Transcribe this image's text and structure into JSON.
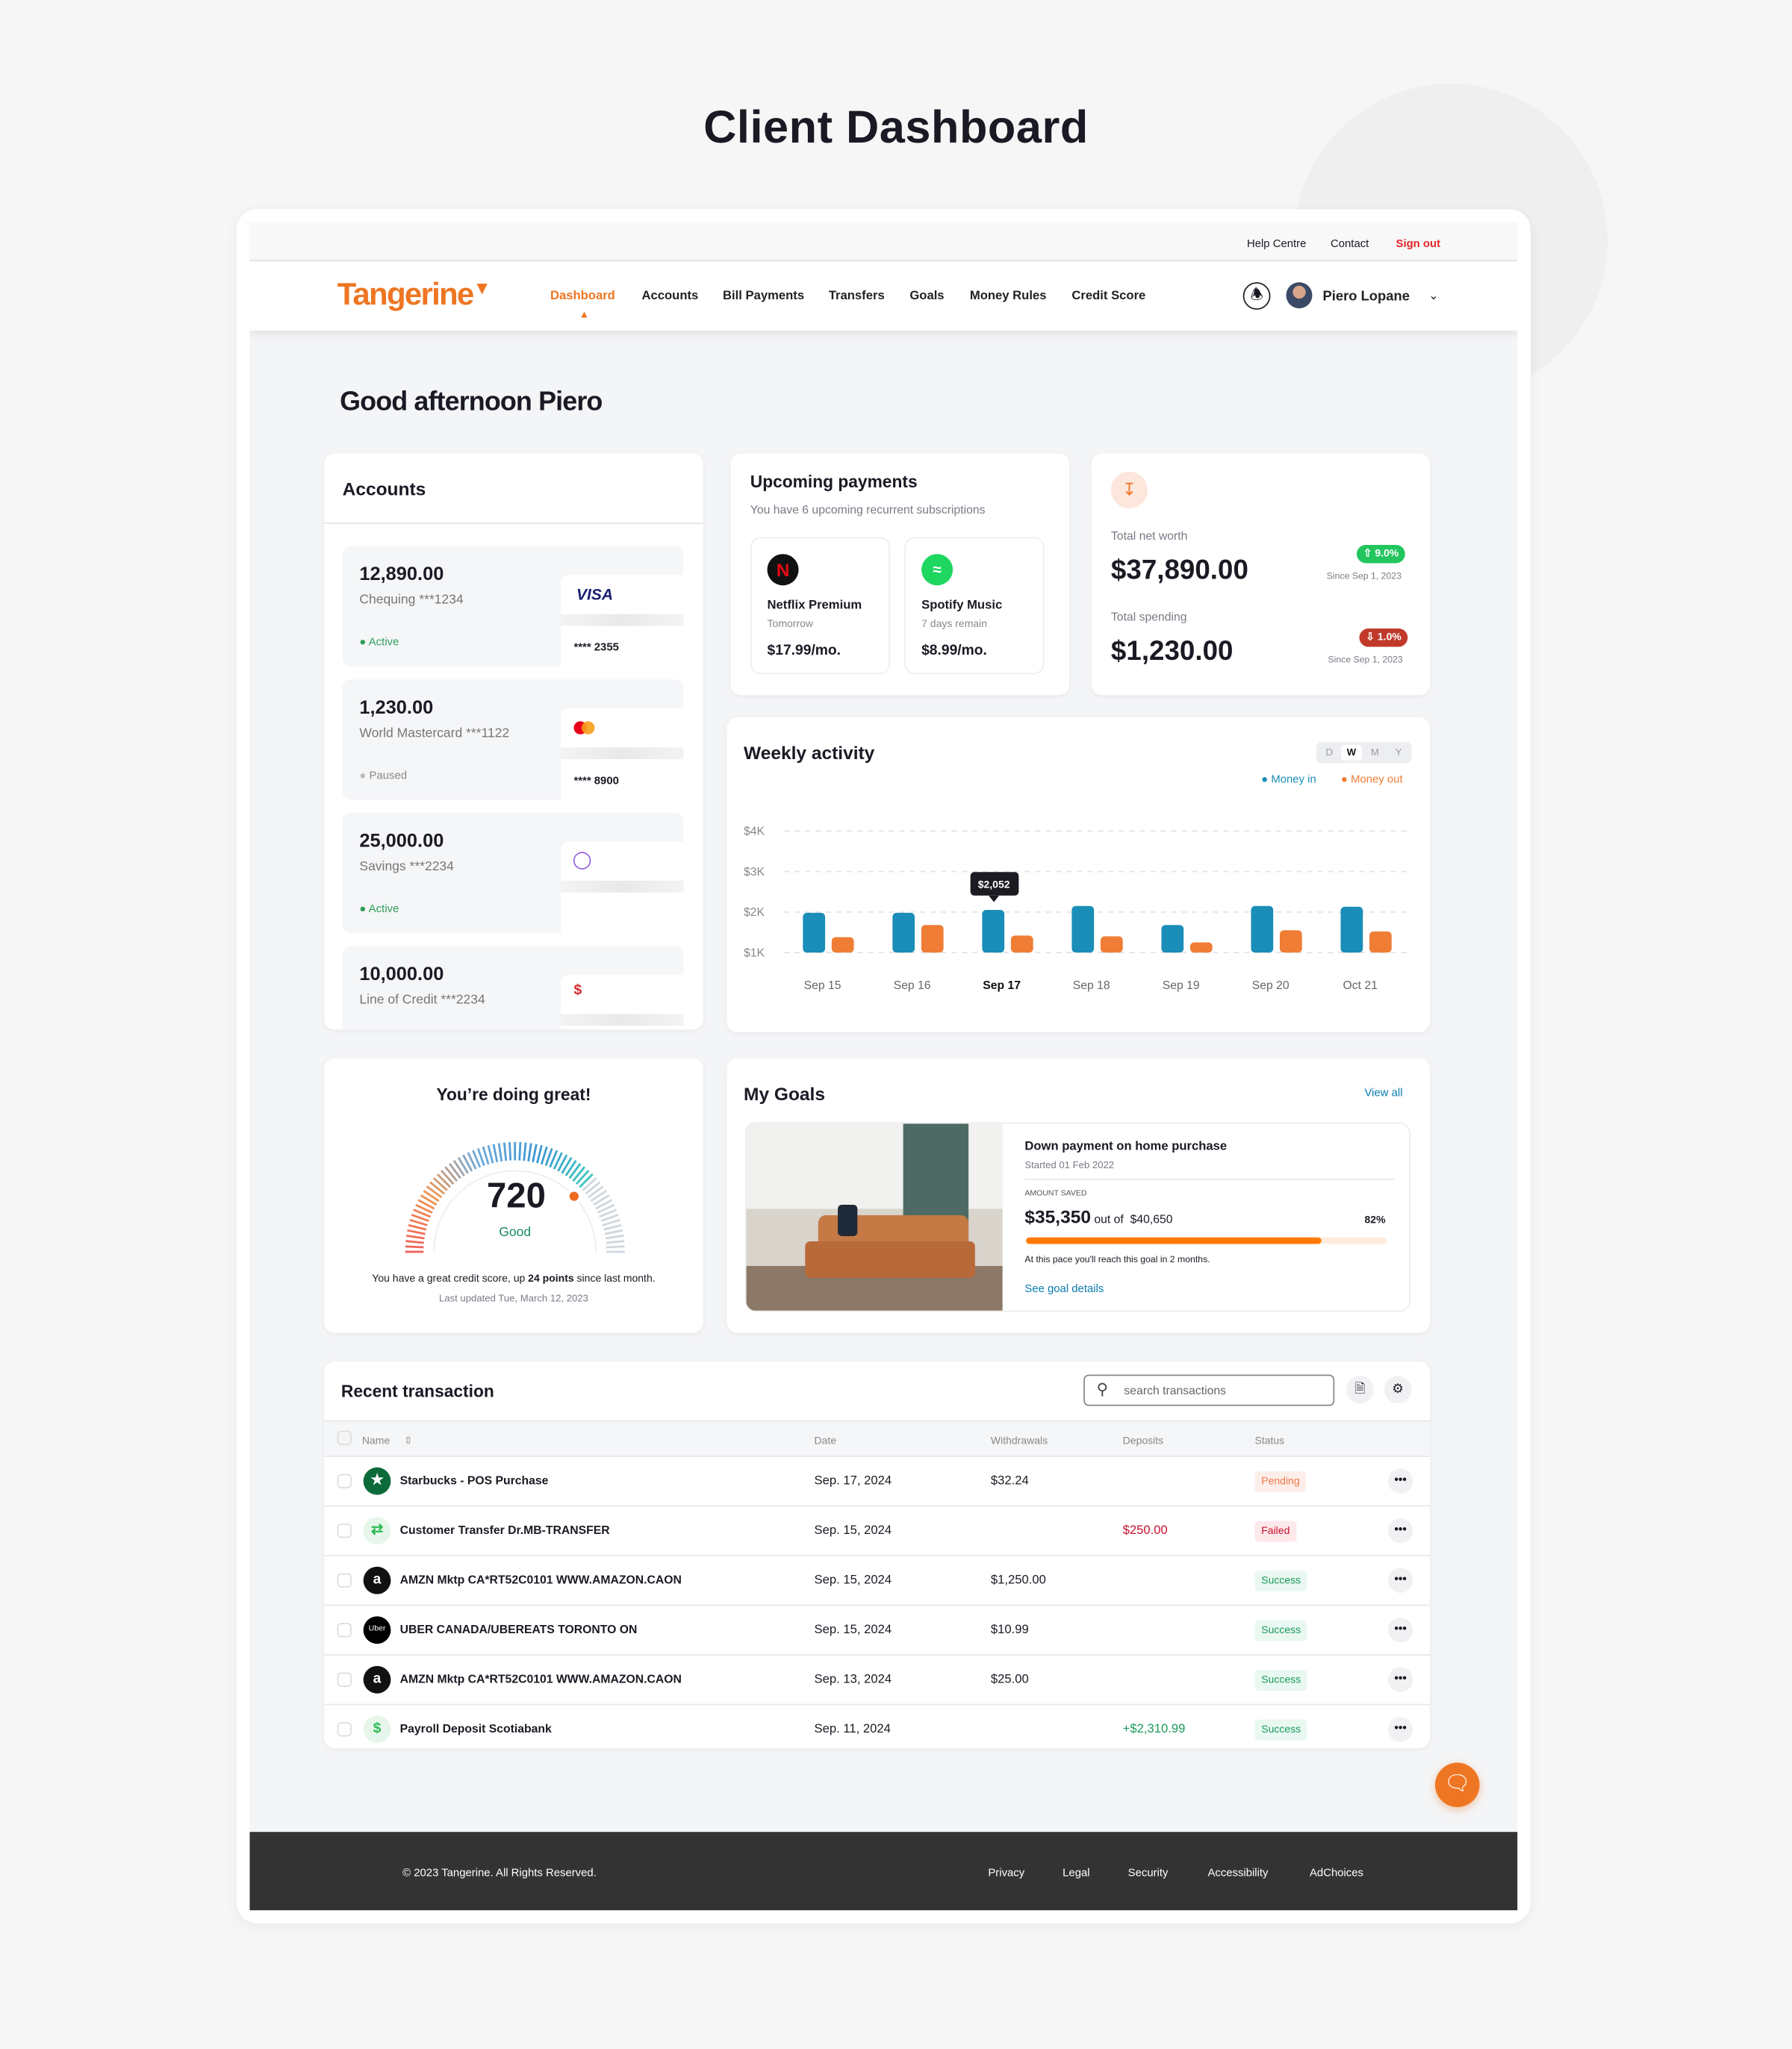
{
  "page_title": "Client Dashboard",
  "topbar": {
    "help": "Help Centre",
    "contact": "Contact",
    "signout": "Sign out"
  },
  "nav": {
    "logo": "Tangerine",
    "items": [
      "Dashboard",
      "Accounts",
      "Bill Payments",
      "Transfers",
      "Goals",
      "Money Rules",
      "Credit Score"
    ],
    "active": "Dashboard",
    "user": "Piero Lopane"
  },
  "greeting": "Good afternoon Piero",
  "accounts": {
    "title": "Accounts",
    "items": [
      {
        "amount": "12,890.00",
        "name": "Chequing ***1234",
        "status": "Active",
        "card_brand": "VISA",
        "card_number": "**** 2355"
      },
      {
        "amount": "1,230.00",
        "name": "World Mastercard ***1122",
        "status": "Paused",
        "card_brand": "mastercard",
        "card_number": "**** 8900"
      },
      {
        "amount": "25,000.00",
        "name": "Savings ***2234",
        "status": "Active",
        "card_brand": "piggy-bank-icon",
        "card_number": ""
      },
      {
        "amount": "10,000.00",
        "name": "Line of Credit ***2234",
        "status": "",
        "card_brand": "money-bag-icon",
        "card_number": ""
      }
    ]
  },
  "upcoming": {
    "title": "Upcoming payments",
    "subtitle": "You have 6 upcoming recurrent subscriptions",
    "items": [
      {
        "name": "Netflix Premium",
        "when": "Tomorrow",
        "price": "$17.99/mo.",
        "icon": "N"
      },
      {
        "name": "Spotify Music",
        "when": "7 days remain",
        "price": "$8.99/mo."
      }
    ]
  },
  "networth": {
    "label": "Total net worth",
    "value": "$37,890.00",
    "change": "9.0%",
    "since": "Since Sep 1, 2023",
    "spend_label": "Total spending",
    "spend_value": "$1,230.00",
    "spend_change": "1.0%",
    "spend_since": "Since Sep 1, 2023"
  },
  "weekly": {
    "title": "Weekly activity",
    "ranges": [
      "D",
      "W",
      "M",
      "Y"
    ],
    "selected_range": "W"
  },
  "chart_data": {
    "type": "bar",
    "title": "Weekly activity",
    "categories": [
      "Sep 15",
      "Sep 16",
      "Sep 17",
      "Sep 18",
      "Sep 19",
      "Sep 20",
      "Oct 21"
    ],
    "series": [
      {
        "name": "Money in",
        "color": "#1a8db8",
        "values": [
          1980,
          1980,
          2052,
          2150,
          1680,
          2150,
          2130
        ]
      },
      {
        "name": "Money out",
        "color": "#ef7d35",
        "values": [
          1380,
          1680,
          1420,
          1400,
          1250,
          1550,
          1520
        ]
      }
    ],
    "yticks": [
      "$1K",
      "$2K",
      "$3K",
      "$4K"
    ],
    "ylim": [
      1000,
      4000
    ],
    "grid": true,
    "legend": "top-right",
    "tooltip": "$2,052",
    "highlight": "Sep 17"
  },
  "credit": {
    "title": "You’re doing great!",
    "score": "720",
    "rating": "Good",
    "score_fraction": 0.76,
    "message_pre": "You have a great credit score, up ",
    "message_bold": "24 points",
    "message_post": " since last month.",
    "updated": "Last updated  Tue, March 12, 2023"
  },
  "goals": {
    "title": "My Goals",
    "view_all": "View all",
    "goal": {
      "name": "Down payment on home purchase",
      "started": "Started 01 Feb 2022",
      "saved_label": "AMOUNT SAVED",
      "saved": "$35,350",
      "out_of": "out of",
      "target": "$40,650",
      "percent": "82%",
      "progress": 0.82,
      "pace": "At this pace you'll reach this goal in 2 months.",
      "details": "See goal details"
    }
  },
  "transactions": {
    "title": "Recent transaction",
    "search_placeholder": "search transactions",
    "columns": [
      "Name",
      "Date",
      "Withdrawals",
      "Deposits",
      "Status"
    ],
    "rows": [
      {
        "name": "Starbucks - POS Purchase",
        "date": "Sep. 17, 2024",
        "withdrawal": "$32.24",
        "deposit": "",
        "status": "Pending",
        "icon": "starbucks"
      },
      {
        "name": "Customer Transfer Dr.MB-TRANSFER",
        "date": "Sep. 15, 2024",
        "withdrawal": "",
        "deposit": "$250.00",
        "status": "Failed",
        "icon": "transfer"
      },
      {
        "name": "AMZN Mktp CA*RT52C0101 WWW.AMAZON.CAON",
        "date": "Sep. 15, 2024",
        "withdrawal": "$1,250.00",
        "deposit": "",
        "status": "Success",
        "icon": "amazon"
      },
      {
        "name": "UBER CANADA/UBEREATS TORONTO ON",
        "date": "Sep. 15, 2024",
        "withdrawal": "$10.99",
        "deposit": "",
        "status": "Success",
        "icon": "uber",
        "icon_text": "Uber"
      },
      {
        "name": "AMZN Mktp CA*RT52C0101 WWW.AMAZON.CAON",
        "date": "Sep. 13, 2024",
        "withdrawal": "$25.00",
        "deposit": "",
        "status": "Success",
        "icon": "amazon"
      },
      {
        "name": "Payroll Deposit Scotiabank",
        "date": "Sep. 11, 2024",
        "withdrawal": "",
        "deposit": "+$2,310.99",
        "status": "Success",
        "icon": "payroll"
      }
    ]
  },
  "footer": {
    "copyright": "© 2023 Tangerine. All Rights Reserved.",
    "links": [
      "Privacy",
      "Legal",
      "Security",
      "Accessibility",
      "AdChoices"
    ]
  },
  "colors": {
    "brand": "#ee7623",
    "money_in": "#1a8db8",
    "money_out": "#ef7d35",
    "success": "#1a9a5c",
    "failed": "#c8102e"
  }
}
